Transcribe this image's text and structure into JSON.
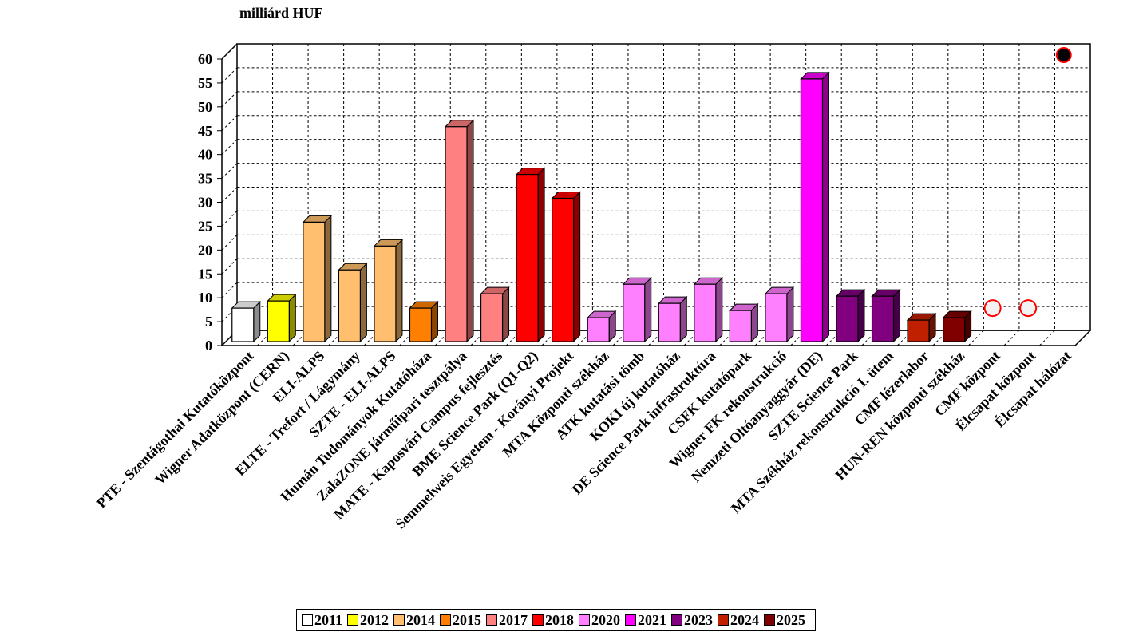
{
  "unit_label": "milliárd HUF",
  "chart_data": {
    "type": "bar",
    "ylim": [
      0,
      60
    ],
    "yticks": [
      0,
      5,
      10,
      15,
      20,
      25,
      30,
      35,
      40,
      45,
      50,
      55,
      60
    ],
    "grid": true,
    "legend_position": "bottom",
    "legend": [
      {
        "label": "2011",
        "color": "#ffffff"
      },
      {
        "label": "2012",
        "color": "#ffff00"
      },
      {
        "label": "2014",
        "color": "#ffbf6e"
      },
      {
        "label": "2015",
        "color": "#ff7f00"
      },
      {
        "label": "2017",
        "color": "#ff8080"
      },
      {
        "label": "2018",
        "color": "#ff0000"
      },
      {
        "label": "2020",
        "color": "#ff80ff"
      },
      {
        "label": "2021",
        "color": "#ff00ff"
      },
      {
        "label": "2023",
        "color": "#800080"
      },
      {
        "label": "2024",
        "color": "#c02000"
      },
      {
        "label": "2025",
        "color": "#800000"
      }
    ],
    "categories": [
      "PTE - Szentágothai Kutatóközpont",
      "Wigner Adatközpont (CERN)",
      "ELI-ALPS",
      "ELTE - Trefort / Lágymány",
      "SZTE - ELI-ALPS",
      "Humán Tudományok Kutatóháza",
      "ZalaZONE járműipari tesztpálya",
      "MATE - Kaposvári Campus fejlesztés",
      "BME Science Park (Q1-Q2)",
      "Semmelweis Egyetem - Korányi Projekt",
      "MTA Központi székház",
      "ATK kutatási tömb",
      "KOKI új kutatóház",
      "DE Science Park infrastruktúra",
      "CSFK kutatópark",
      "Wigner FK rekonstrukció",
      "Nemzeti Oltóanyaggyár (DE)",
      "SZTE Science Park",
      "MTA Székház rekonstrukció I. ütem",
      "CMF lézerlabor",
      "HUN-REN központi székház",
      "CMF központ",
      "Élcsapat központ",
      "Élcsapat hálózat"
    ],
    "values": [
      7,
      8.5,
      25,
      15,
      20,
      7,
      45,
      10,
      35,
      30,
      5,
      12,
      8,
      12,
      6.5,
      10,
      55,
      9.5,
      9.5,
      4.5,
      5,
      null,
      null,
      null
    ],
    "year": [
      "2011",
      "2012",
      "2014",
      "2014",
      "2014",
      "2015",
      "2017",
      "2017",
      "2018",
      "2018",
      "2020",
      "2020",
      "2020",
      "2020",
      "2020",
      "2020",
      "2021",
      "2023",
      "2023",
      "2024",
      "2025",
      null,
      null,
      null
    ],
    "markers": [
      {
        "category": "CMF központ",
        "value": 7,
        "style": "open-circle",
        "color": "#ff0000"
      },
      {
        "category": "Élcsapat központ",
        "value": 7,
        "style": "open-circle",
        "color": "#ff0000"
      },
      {
        "category": "Élcsapat hálózat",
        "value": 60,
        "style": "filled-circle",
        "color": "#000000"
      }
    ]
  }
}
